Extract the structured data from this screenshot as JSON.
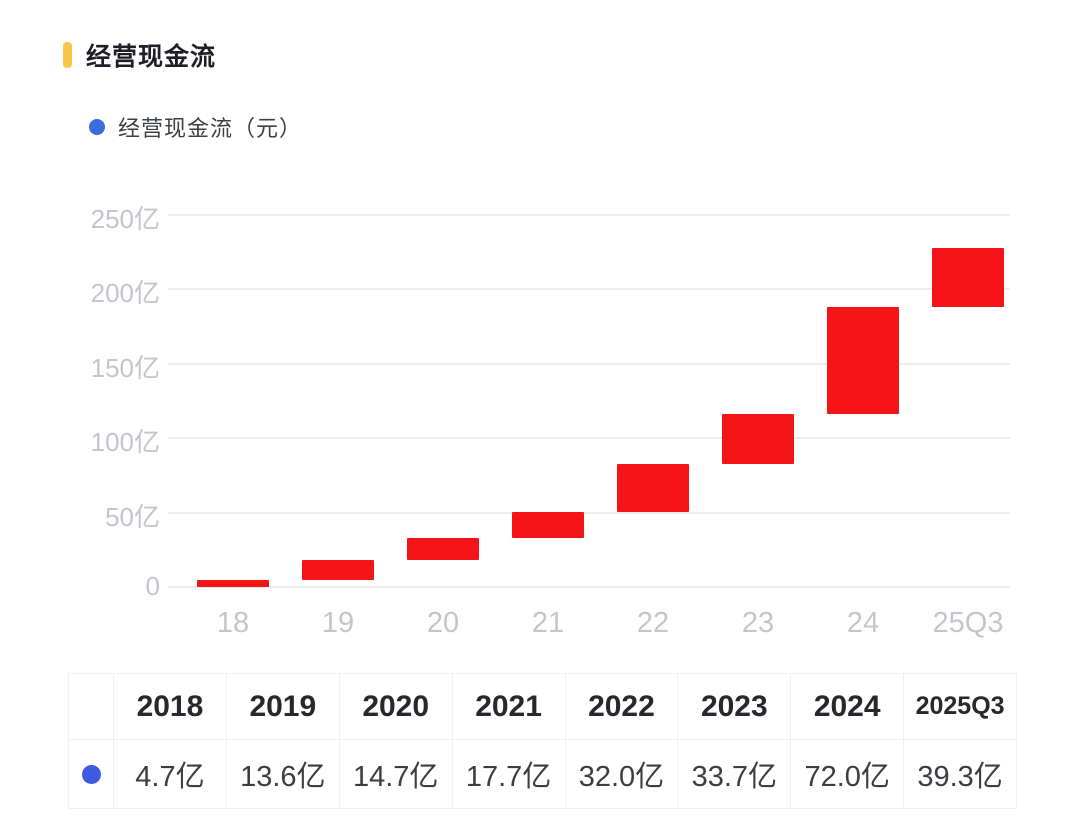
{
  "header": {
    "title": "经营现金流"
  },
  "legend": {
    "label": "经营现金流（元）"
  },
  "colors": {
    "accent_yellow": "#f6c54a",
    "bar_red": "#f41317",
    "legend_blue": "#3a6ce0",
    "table_marker_blue": "#3e5be0",
    "grid_line": "#ececec",
    "axis_label_gray": "#c2c6cc"
  },
  "chart_data": {
    "type": "bar",
    "variant": "waterfall-cumulative",
    "title": "经营现金流",
    "series_name": "经营现金流（元）",
    "unit": "亿",
    "categories": [
      "18",
      "19",
      "20",
      "21",
      "22",
      "23",
      "24",
      "25Q3"
    ],
    "values": [
      4.7,
      13.6,
      14.7,
      17.7,
      32.0,
      33.7,
      72.0,
      39.3
    ],
    "cumulative_start": [
      0,
      4.7,
      18.3,
      33.0,
      50.7,
      82.7,
      116.4,
      188.4
    ],
    "cumulative_end": [
      4.7,
      18.3,
      33.0,
      50.7,
      82.7,
      116.4,
      188.4,
      227.7
    ],
    "ylim": [
      0,
      250
    ],
    "yticks": [
      0,
      50,
      100,
      150,
      200,
      250
    ],
    "ytick_labels": [
      "0",
      "50亿",
      "100亿",
      "150亿",
      "200亿",
      "250亿"
    ],
    "grid": true,
    "legend_position": "top-left",
    "bar_color": "#f41317"
  },
  "table": {
    "corner_label": "",
    "headers": [
      "2018",
      "2019",
      "2020",
      "2021",
      "2022",
      "2023",
      "2024",
      "2025Q3"
    ],
    "values": [
      "4.7亿",
      "13.6亿",
      "14.7亿",
      "17.7亿",
      "32.0亿",
      "33.7亿",
      "72.0亿",
      "39.3亿"
    ]
  }
}
